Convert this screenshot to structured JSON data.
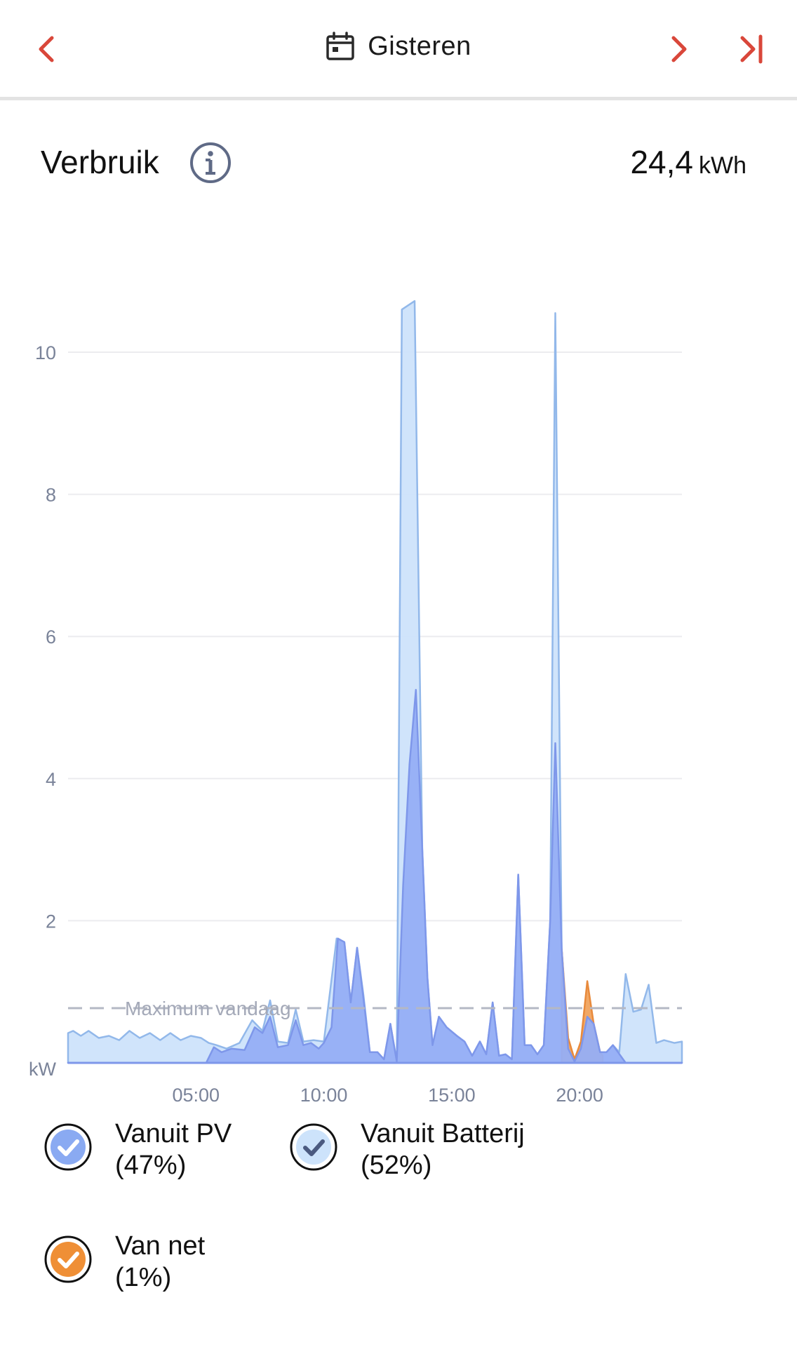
{
  "header": {
    "date_label": "Gisteren",
    "prev_icon": "chevron-left-icon",
    "next_icon": "chevron-right-icon",
    "last_icon": "skip-to-end-icon",
    "calendar_icon": "calendar-icon",
    "accent_color": "#d9473a"
  },
  "title": "Verbruik",
  "info_icon": "info-icon",
  "total": {
    "value": "24,4",
    "unit": "kWh"
  },
  "chart_data": {
    "type": "area",
    "title": "",
    "xlabel": "",
    "ylabel": "kW",
    "xlim": [
      0,
      24
    ],
    "ylim": [
      0,
      11
    ],
    "y_ticks": [
      2,
      4,
      6,
      8,
      10
    ],
    "x_ticks": [
      {
        "h": 5,
        "label": "05:00"
      },
      {
        "h": 10,
        "label": "10:00"
      },
      {
        "h": 15,
        "label": "15:00"
      },
      {
        "h": 20,
        "label": "20:00"
      }
    ],
    "grid": true,
    "max_line": {
      "value": 0.77,
      "label": "Maximum vandaag"
    },
    "series": [
      {
        "name": "Vanuit PV",
        "color": "#95aef5",
        "stroke": "#7e97ea",
        "points": [
          [
            0,
            0
          ],
          [
            5.4,
            0
          ],
          [
            5.7,
            0.22
          ],
          [
            6,
            0.15
          ],
          [
            6.4,
            0.2
          ],
          [
            6.9,
            0.18
          ],
          [
            7.3,
            0.5
          ],
          [
            7.6,
            0.42
          ],
          [
            7.9,
            0.65
          ],
          [
            8.2,
            0.22
          ],
          [
            8.6,
            0.25
          ],
          [
            8.9,
            0.6
          ],
          [
            9.2,
            0.25
          ],
          [
            9.5,
            0.28
          ],
          [
            9.8,
            0.2
          ],
          [
            10,
            0.28
          ],
          [
            10.3,
            0.5
          ],
          [
            10.55,
            1.75
          ],
          [
            10.8,
            1.7
          ],
          [
            11.05,
            0.85
          ],
          [
            11.3,
            1.62
          ],
          [
            11.55,
            0.9
          ],
          [
            11.8,
            0.15
          ],
          [
            12.1,
            0.15
          ],
          [
            12.35,
            0.05
          ],
          [
            12.6,
            0.55
          ],
          [
            12.85,
            0.02
          ],
          [
            13.1,
            2.5
          ],
          [
            13.35,
            4.2
          ],
          [
            13.6,
            5.25
          ],
          [
            13.85,
            3.0
          ],
          [
            14.05,
            1.2
          ],
          [
            14.25,
            0.25
          ],
          [
            14.5,
            0.65
          ],
          [
            14.8,
            0.5
          ],
          [
            15.2,
            0.38
          ],
          [
            15.5,
            0.3
          ],
          [
            15.8,
            0.1
          ],
          [
            16.1,
            0.3
          ],
          [
            16.35,
            0.12
          ],
          [
            16.6,
            0.85
          ],
          [
            16.85,
            0.1
          ],
          [
            17.1,
            0.12
          ],
          [
            17.35,
            0.05
          ],
          [
            17.6,
            2.65
          ],
          [
            17.85,
            0.25
          ],
          [
            18.1,
            0.25
          ],
          [
            18.35,
            0.12
          ],
          [
            18.6,
            0.25
          ],
          [
            18.85,
            2.0
          ],
          [
            19.05,
            4.5
          ],
          [
            19.3,
            1.6
          ],
          [
            19.55,
            0.2
          ],
          [
            19.8,
            0.02
          ],
          [
            20.05,
            0.2
          ],
          [
            20.3,
            0.65
          ],
          [
            20.55,
            0.55
          ],
          [
            20.8,
            0.15
          ],
          [
            21.05,
            0.15
          ],
          [
            21.3,
            0.25
          ],
          [
            21.5,
            0.15
          ],
          [
            21.8,
            0
          ],
          [
            24,
            0
          ]
        ]
      },
      {
        "name": "Vanuit Batterij",
        "color": "#cde3fb",
        "stroke": "#92b8ea",
        "points": [
          [
            0,
            0.42
          ],
          [
            0.2,
            0.45
          ],
          [
            0.5,
            0.38
          ],
          [
            0.8,
            0.45
          ],
          [
            1.2,
            0.35
          ],
          [
            1.6,
            0.38
          ],
          [
            2,
            0.32
          ],
          [
            2.4,
            0.45
          ],
          [
            2.8,
            0.35
          ],
          [
            3.2,
            0.42
          ],
          [
            3.6,
            0.32
          ],
          [
            4,
            0.42
          ],
          [
            4.4,
            0.32
          ],
          [
            4.8,
            0.38
          ],
          [
            5.2,
            0.35
          ],
          [
            5.5,
            0.28
          ],
          [
            5.8,
            0.25
          ],
          [
            6.2,
            0.2
          ],
          [
            6.7,
            0.28
          ],
          [
            7.2,
            0.6
          ],
          [
            7.6,
            0.45
          ],
          [
            7.9,
            0.88
          ],
          [
            8.2,
            0.3
          ],
          [
            8.6,
            0.28
          ],
          [
            8.9,
            0.75
          ],
          [
            9.2,
            0.3
          ],
          [
            9.6,
            0.32
          ],
          [
            10,
            0.3
          ],
          [
            10.5,
            1.75
          ],
          [
            10.8,
            1.7
          ],
          [
            11.05,
            0.85
          ],
          [
            11.3,
            1.62
          ],
          [
            11.55,
            0.95
          ],
          [
            11.8,
            0.15
          ],
          [
            12.1,
            0.15
          ],
          [
            12.35,
            0.05
          ],
          [
            12.6,
            0.55
          ],
          [
            12.85,
            0.02
          ],
          [
            13.05,
            10.6
          ],
          [
            13.55,
            10.72
          ],
          [
            13.85,
            3.0
          ],
          [
            14.05,
            1.2
          ],
          [
            14.25,
            0.25
          ],
          [
            14.5,
            0.65
          ],
          [
            14.8,
            0.5
          ],
          [
            15.2,
            0.38
          ],
          [
            15.5,
            0.3
          ],
          [
            15.8,
            0.1
          ],
          [
            16.1,
            0.3
          ],
          [
            16.35,
            0.12
          ],
          [
            16.6,
            0.85
          ],
          [
            16.85,
            0.1
          ],
          [
            17.1,
            0.12
          ],
          [
            17.35,
            0.05
          ],
          [
            17.6,
            2.65
          ],
          [
            17.85,
            0.25
          ],
          [
            18.1,
            0.25
          ],
          [
            18.35,
            0.12
          ],
          [
            18.6,
            0.25
          ],
          [
            18.85,
            2.0
          ],
          [
            19.05,
            10.55
          ],
          [
            19.3,
            1.6
          ],
          [
            19.55,
            0.2
          ],
          [
            19.8,
            0.02
          ],
          [
            20.05,
            0.2
          ],
          [
            20.3,
            0.65
          ],
          [
            20.55,
            0.55
          ],
          [
            20.8,
            0.15
          ],
          [
            21.05,
            0.15
          ],
          [
            21.3,
            0.25
          ],
          [
            21.55,
            0.15
          ],
          [
            21.8,
            1.25
          ],
          [
            22.1,
            0.72
          ],
          [
            22.4,
            0.75
          ],
          [
            22.7,
            1.1
          ],
          [
            23,
            0.28
          ],
          [
            23.3,
            0.32
          ],
          [
            23.7,
            0.28
          ],
          [
            24,
            0.3
          ]
        ]
      },
      {
        "name": "Van net",
        "color": "#f0a35e",
        "stroke": "#e88a3c",
        "points": [
          [
            19.3,
            1.6
          ],
          [
            19.55,
            0.35
          ],
          [
            19.8,
            0.05
          ],
          [
            20.05,
            0.3
          ],
          [
            20.3,
            1.15
          ],
          [
            20.55,
            0.55
          ],
          [
            20.8,
            0.15
          ],
          [
            20.9,
            0.1
          ]
        ]
      }
    ],
    "legend": [
      {
        "label": "Vanuit PV",
        "pct": "(47%)",
        "fill": "#8aaaf2",
        "check": "#ffffff"
      },
      {
        "label": "Vanuit Batterij",
        "pct": "(52%)",
        "fill": "#cde3fb",
        "check": "#4b5a80"
      },
      {
        "label": "Van net",
        "pct": "(1%)",
        "fill": "#ef8f36",
        "check": "#ffffff"
      }
    ],
    "legend_placement": "bottom"
  }
}
